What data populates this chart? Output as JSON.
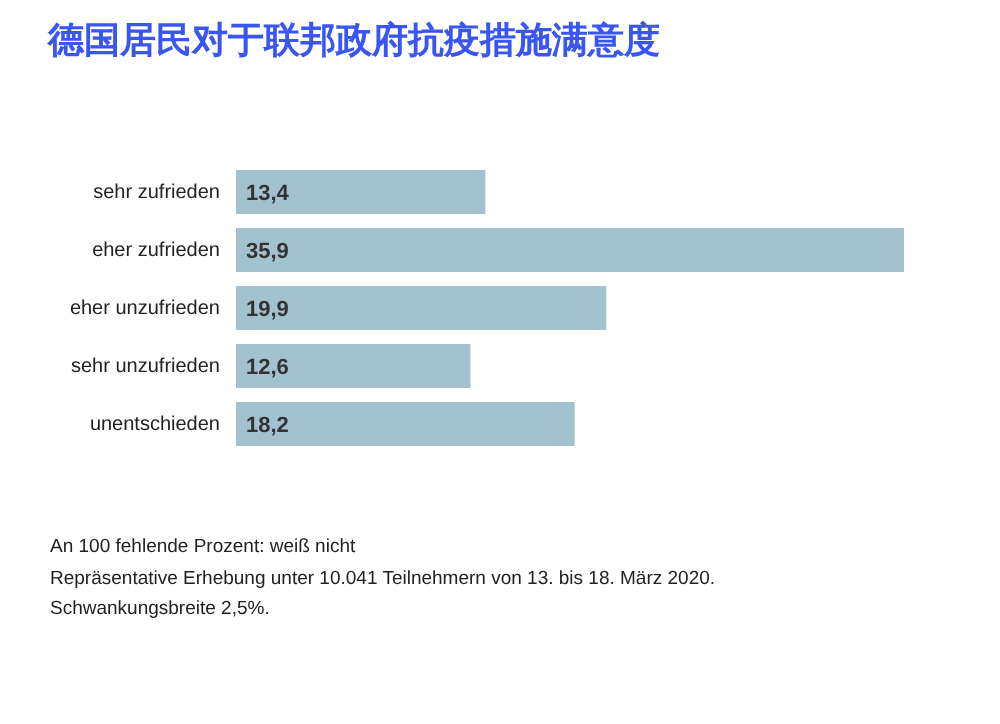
{
  "chart_data": {
    "type": "bar",
    "orientation": "horizontal",
    "title": "德国居民对于联邦政府抗疫措施满意度",
    "categories": [
      "sehr zufrieden",
      "eher zufrieden",
      "eher unzufrieden",
      "sehr unzufrieden",
      "unentschieden"
    ],
    "values": [
      13.4,
      35.9,
      19.9,
      12.6,
      18.2
    ],
    "value_labels": [
      "13,4",
      "35,9",
      "19,9",
      "12,6",
      "18,2"
    ],
    "color": "#a3c2d0",
    "grid": false,
    "legend": false,
    "annotations": [
      "An 100 fehlende Prozent: weiß nicht",
      "Repräsentative Erhebung unter 10.041 Teilnehmern von 13. bis 18. März 2020.",
      "Schwankungsbreite 2,5%."
    ]
  }
}
